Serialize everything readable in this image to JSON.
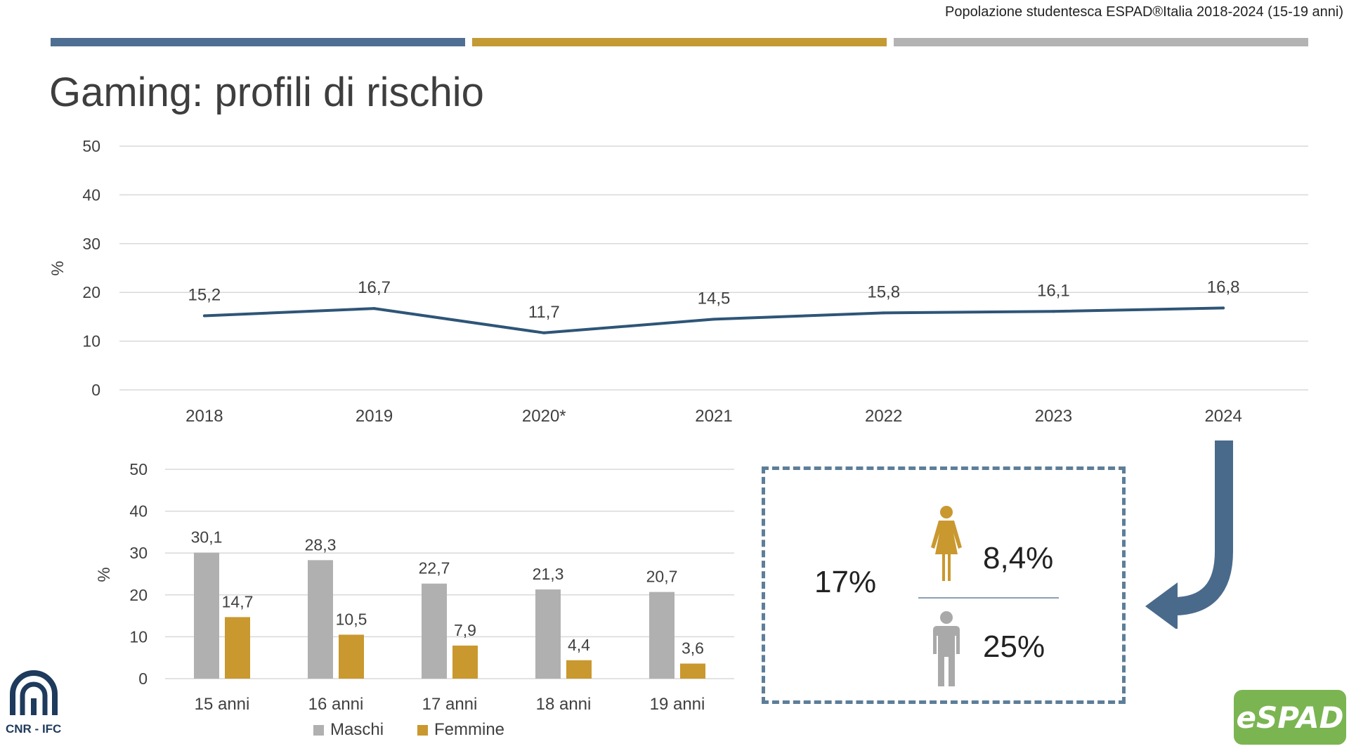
{
  "header": {
    "note": "Popolazione studentesca ESPAD®Italia 2018-2024 (15-19 anni)"
  },
  "title": "Gaming: profili di rischio",
  "colors": {
    "blue": "#4f6f92",
    "gold": "#c49a34",
    "gray": "#b3b3b3",
    "line": "#2e5577",
    "bar_m": "#b0b0b0",
    "bar_f": "#c9982f"
  },
  "chart_data": [
    {
      "type": "line",
      "categories": [
        "2018",
        "2019",
        "2020*",
        "2021",
        "2022",
        "2023",
        "2024"
      ],
      "series": [
        {
          "values": [
            15.2,
            16.7,
            11.7,
            14.5,
            15.8,
            16.1,
            16.8
          ]
        }
      ],
      "data_labels": [
        "15,2",
        "16,7",
        "11,7",
        "14,5",
        "15,8",
        "16,1",
        "16,8"
      ],
      "ylabel": "%",
      "ylim": [
        0,
        50
      ],
      "yticks": [
        "0",
        "10",
        "20",
        "30",
        "40",
        "50"
      ],
      "grid": true
    },
    {
      "type": "bar",
      "categories": [
        "15 anni",
        "16 anni",
        "17 anni",
        "18 anni",
        "19 anni"
      ],
      "series": [
        {
          "name": "Maschi",
          "values": [
            30.1,
            28.3,
            22.7,
            21.3,
            20.7
          ],
          "labels": [
            "30,1",
            "28,3",
            "22,7",
            "21,3",
            "20,7"
          ]
        },
        {
          "name": "Femmine",
          "values": [
            14.7,
            10.5,
            7.9,
            4.4,
            3.6
          ],
          "labels": [
            "14,7",
            "10,5",
            "7,9",
            "4,4",
            "3,6"
          ]
        }
      ],
      "ylabel": "%",
      "ylim": [
        0,
        50
      ],
      "yticks": [
        "0",
        "10",
        "20",
        "30",
        "40",
        "50"
      ],
      "grid": true,
      "legend": "bottom"
    }
  ],
  "summary": {
    "total": "17%",
    "female": "8,4%",
    "male": "25%"
  },
  "logos": {
    "cnr": "CNR - IFC",
    "espad": "eSPAD"
  }
}
